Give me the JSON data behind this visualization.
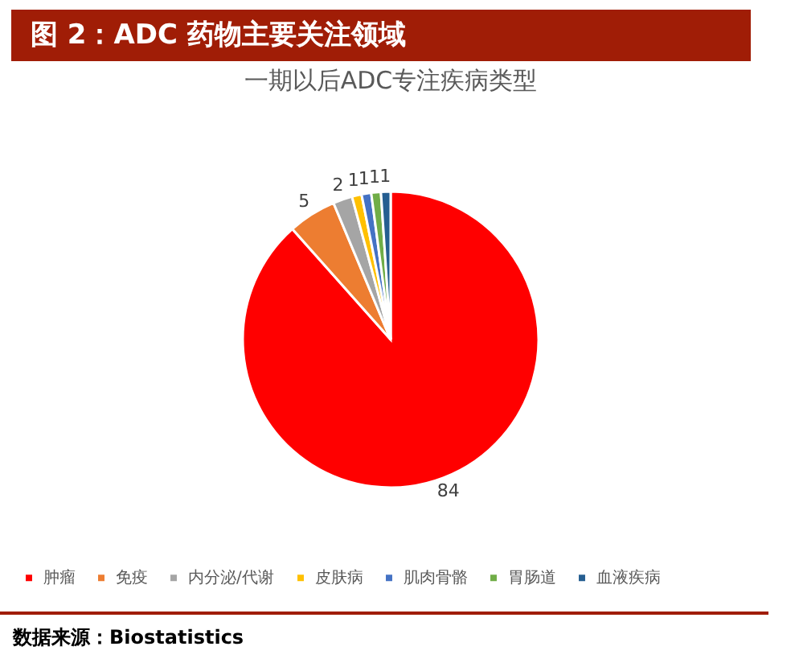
{
  "chart_data": {
    "type": "pie",
    "title": "图 2：ADC 药物主要关注领域",
    "subtitle": "一期以后ADC专注疾病类型",
    "categories": [
      "肿瘤",
      "免疫",
      "内分泌/代谢",
      "皮肤病",
      "肌肉骨骼",
      "胃肠道",
      "血液疾病"
    ],
    "values": [
      84,
      5,
      2,
      1,
      1,
      1,
      1
    ],
    "colors": [
      "#ff0000",
      "#ed7d31",
      "#a5a5a5",
      "#ffc000",
      "#4472c4",
      "#70ad47",
      "#255e91"
    ],
    "data_labels": true,
    "legend": "bottom",
    "annotations": [
      "数据来源：Biostatistics"
    ]
  }
}
